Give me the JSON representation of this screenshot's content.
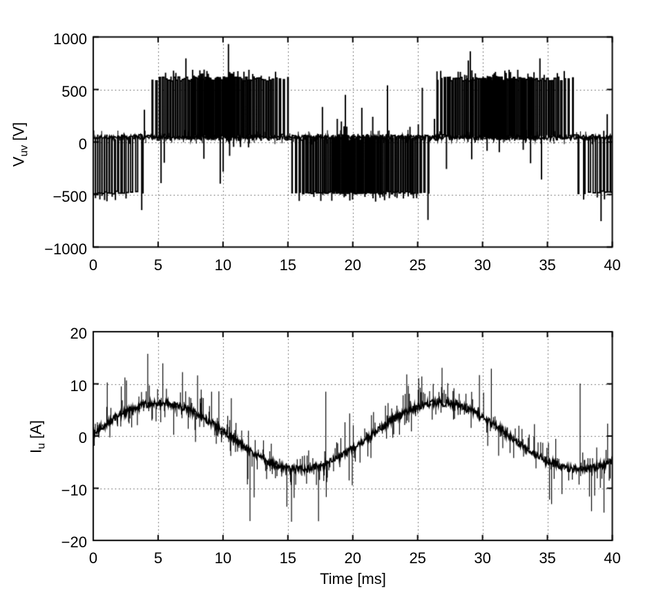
{
  "figure": {
    "background": "#ffffff",
    "line_color": "#000000"
  },
  "chart_data": [
    {
      "type": "line",
      "ylabel": {
        "main": "V",
        "sub": "uv",
        "unit": " [V]"
      },
      "xlabel": "",
      "xlim": [
        0,
        40
      ],
      "ylim": [
        -1000,
        1000
      ],
      "xticks": [
        0,
        5,
        10,
        15,
        20,
        25,
        30,
        35,
        40
      ],
      "yticks": [
        1000,
        500,
        0,
        -500,
        -1000
      ],
      "grid": true,
      "signal": {
        "kind": "pwm_line_to_line_voltage",
        "fundamental_period_ms": 22,
        "positive_half_start_ms": 4,
        "positive_pulse_level_V": 600,
        "negative_pulse_level_V": -480,
        "baseline_V": 45,
        "carrier_period_ms": 0.19,
        "spike_extreme_V": 950
      }
    },
    {
      "type": "line",
      "ylabel": {
        "main": "I",
        "sub": "u",
        "unit": " [A]"
      },
      "xlabel": "Time [ms]",
      "xlim": [
        0,
        40
      ],
      "ylim": [
        -20,
        20
      ],
      "xticks": [
        0,
        5,
        10,
        15,
        20,
        25,
        30,
        35,
        40
      ],
      "yticks": [
        20,
        10,
        0,
        -10,
        -20
      ],
      "grid": true,
      "signal": {
        "kind": "sinusoid_with_switching_noise",
        "amplitude_A": 6.35,
        "period_ms": 21.6,
        "phase_offset_ms": 0.3,
        "ripple_A": 0.7,
        "spike_extreme_A": 18.4
      }
    }
  ]
}
